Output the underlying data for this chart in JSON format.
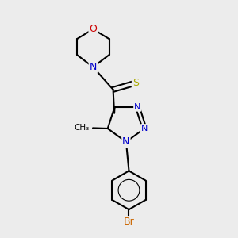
{
  "background_color": "#ececec",
  "atom_colors": {
    "C": "#000000",
    "N": "#0000CC",
    "O": "#CC0000",
    "S": "#AAAA00",
    "Br": "#CC6600"
  },
  "figsize": [
    3.0,
    3.0
  ],
  "dpi": 100
}
